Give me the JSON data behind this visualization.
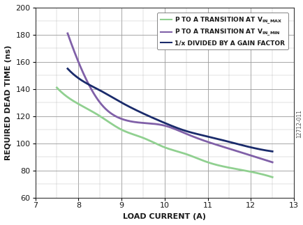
{
  "green_x": [
    7.5,
    7.75,
    8.0,
    8.5,
    9.0,
    9.5,
    10.0,
    10.5,
    11.0,
    11.5,
    12.0,
    12.5
  ],
  "green_y": [
    141,
    134,
    129,
    120,
    110,
    104,
    97,
    92,
    86,
    82,
    79,
    75
  ],
  "purple_x": [
    7.75,
    8.0,
    8.5,
    9.0,
    9.5,
    10.0,
    10.5,
    11.0,
    11.5,
    12.0,
    12.5
  ],
  "purple_y": [
    181,
    160,
    130,
    118,
    115,
    113,
    107,
    101,
    96,
    91,
    86
  ],
  "blue_x": [
    7.75,
    8.0,
    8.5,
    9.0,
    9.5,
    10.0,
    10.5,
    11.0,
    11.5,
    12.0,
    12.5
  ],
  "blue_y": [
    155,
    148,
    139,
    130,
    122,
    115,
    109,
    105,
    101,
    97,
    94
  ],
  "green_color": "#90D090",
  "purple_color": "#8060A8",
  "blue_color": "#1A2B6B",
  "xlim": [
    7,
    13
  ],
  "ylim": [
    60,
    200
  ],
  "xticks": [
    7,
    8,
    9,
    10,
    11,
    12,
    13
  ],
  "yticks": [
    60,
    80,
    100,
    120,
    140,
    160,
    180,
    200
  ],
  "xlabel": "LOAD CURRENT (A)",
  "ylabel": "REQUIRED DEAD TIME (ns)",
  "legend_label_green": "P TO A TRANSITION AT V",
  "legend_label_purple": "P TO A TRANSITION AT V",
  "legend_label_blue": "1/x DIVIDED BY A GAIN FACTOR",
  "watermark": "12712-011",
  "linewidth": 2.0,
  "figsize": [
    4.35,
    3.23
  ],
  "dpi": 100
}
